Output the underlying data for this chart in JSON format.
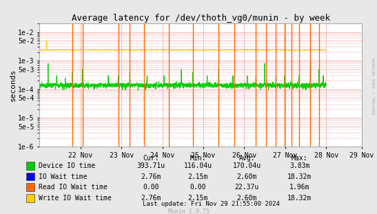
{
  "title": "Average latency for /dev/thoth_vg0/munin - by week",
  "ylabel": "seconds",
  "background_color": "#e8e8e8",
  "plot_bg_color": "#ffffff",
  "grid_color": "#f0a0a0",
  "figsize": [
    5.47,
    3.11
  ],
  "dpi": 100,
  "yticks": [
    1e-06,
    5e-06,
    1e-05,
    5e-05,
    0.0001,
    0.0005,
    0.001,
    0.005,
    0.01
  ],
  "xmax": 604800,
  "xtick_positions": [
    86400,
    172800,
    259200,
    345600,
    432000,
    518400,
    604800
  ],
  "xtick_labels": [
    "22 Nov",
    "23 Nov",
    "24 Nov",
    "25 Nov",
    "26 Nov",
    "27 Nov",
    "28 Nov"
  ],
  "extra_xtick": 680400,
  "extra_xtick_label": "29 Nov",
  "legend_items": [
    {
      "label": "Device IO time",
      "color": "#00cc00"
    },
    {
      "label": "IO Wait time",
      "color": "#0000ff"
    },
    {
      "label": "Read IO Wait time",
      "color": "#ff6600"
    },
    {
      "label": "Write IO Wait time",
      "color": "#ffcc00"
    }
  ],
  "table_headers": [
    "Cur:",
    "Min:",
    "Avg:",
    "Max:"
  ],
  "table_rows": [
    [
      "Device IO time",
      "393.71u",
      "116.04u",
      "170.04u",
      "3.83m"
    ],
    [
      "IO Wait time",
      "2.76m",
      "2.15m",
      "2.60m",
      "18.32m"
    ],
    [
      "Read IO Wait time",
      "0.00",
      "0.00",
      "22.37u",
      "1.96m"
    ],
    [
      "Write IO Wait time",
      "2.76m",
      "2.15m",
      "2.60m",
      "18.32m"
    ]
  ],
  "last_update": "Last update: Fri Nov 29 21:55:00 2024",
  "munin_version": "Munin 2.0.75",
  "rrdtool_label": "RRDTOOL / TOBI OETIKER",
  "orange_spike_positions": [
    0.115,
    0.15,
    0.275,
    0.315,
    0.365,
    0.45,
    0.535,
    0.625,
    0.68,
    0.755,
    0.79,
    0.825,
    0.855,
    0.88,
    0.905,
    0.945,
    0.975
  ],
  "green_spike_x": [
    0.03,
    0.06,
    0.09,
    0.115,
    0.15,
    0.24,
    0.275,
    0.315,
    0.375,
    0.435,
    0.495,
    0.535,
    0.585,
    0.625,
    0.675,
    0.725,
    0.755,
    0.785,
    0.825,
    0.855,
    0.905,
    0.945,
    0.975,
    0.99
  ],
  "green_spike_h": [
    0.0008,
    0.0003,
    0.00025,
    0.0004,
    0.0005,
    0.0003,
    0.0003,
    0.0004,
    0.0003,
    0.0003,
    0.0005,
    0.0004,
    0.0003,
    0.0005,
    0.0003,
    0.0003,
    0.0003,
    0.0008,
    0.0003,
    0.0003,
    0.0003,
    0.0008,
    0.0005,
    0.0003
  ]
}
